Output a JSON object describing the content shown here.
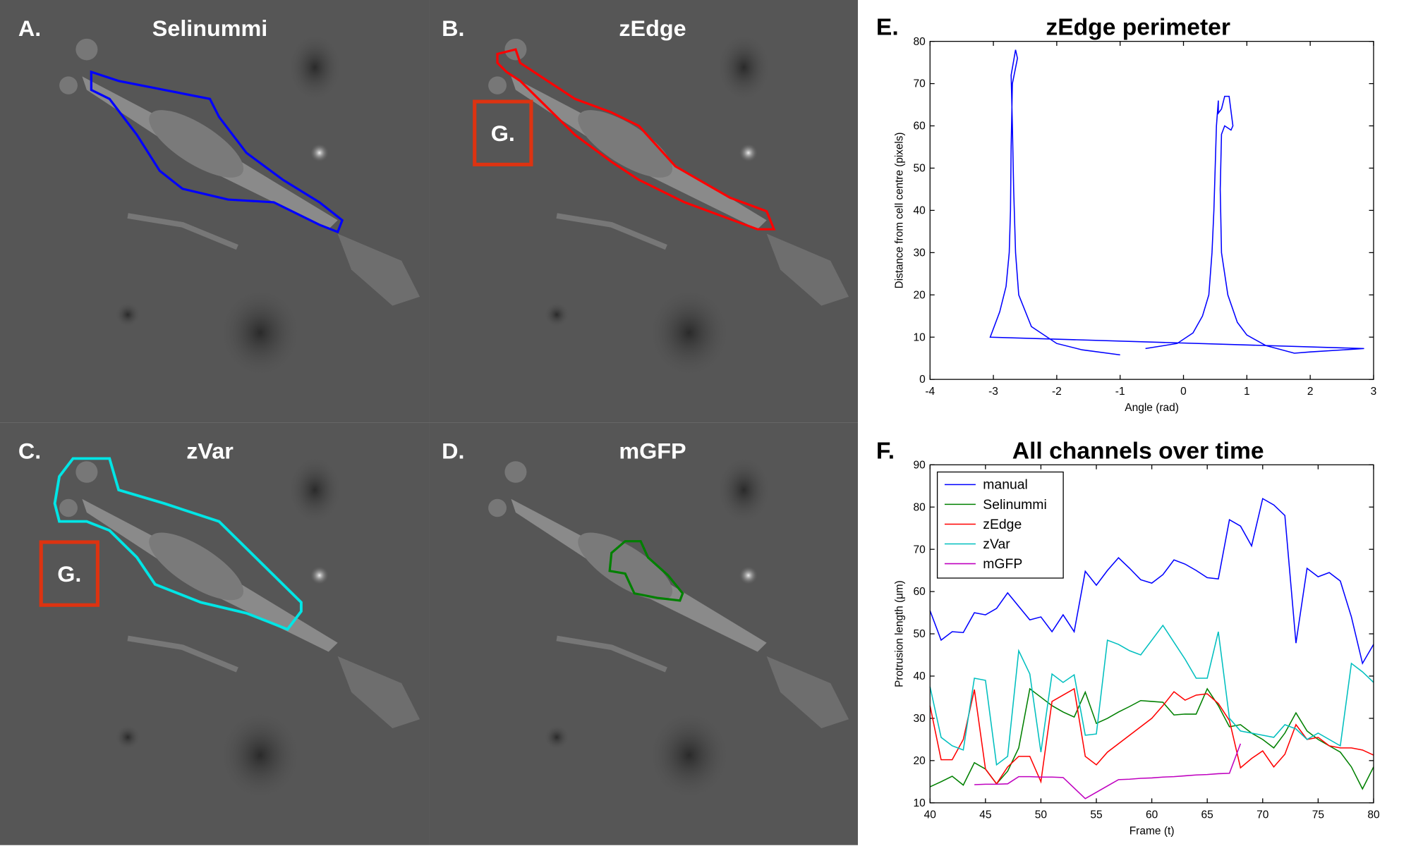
{
  "panels": [
    {
      "label": "A.",
      "title": "Selinummi"
    },
    {
      "label": "B.",
      "title": "zEdge",
      "inset_label": "G."
    },
    {
      "label": "C.",
      "title": "zVar",
      "inset_label": "G."
    },
    {
      "label": "D.",
      "title": "mGFP"
    }
  ],
  "chart_data": [
    {
      "type": "line",
      "label": "E.",
      "title": "zEdge perimeter",
      "x_label": "Angle (rad)",
      "y_label": "Distance from cell centre (pixels)",
      "x": [
        -1.0,
        -1.6,
        -2.0,
        -2.4,
        -2.6,
        -2.65,
        -2.68,
        -2.7,
        -2.72,
        -2.65,
        -2.62,
        -2.7,
        -2.72,
        -2.73,
        -2.75,
        -2.8,
        -2.9,
        -3.05,
        2.85,
        2.0,
        1.75,
        1.3,
        1.0,
        0.85,
        0.7,
        0.6,
        0.58,
        0.6,
        0.65,
        0.75,
        0.78,
        0.72,
        0.65,
        0.6,
        0.55,
        0.55,
        0.52,
        0.5,
        0.48,
        0.45,
        0.4,
        0.3,
        0.15,
        -0.1,
        -0.6
      ],
      "values": [
        5.8,
        7,
        8.5,
        12.5,
        20,
        30,
        45,
        60,
        72,
        78,
        76,
        70,
        55,
        40,
        30,
        22,
        16,
        10,
        7.3,
        6.5,
        6.2,
        8,
        10.5,
        13.5,
        20,
        30,
        45,
        58,
        60,
        59,
        60,
        67,
        67,
        64,
        63,
        66,
        60,
        50,
        40,
        30,
        20,
        15,
        11,
        8.5,
        7.3
      ],
      "color": "#0000ff",
      "xlim": [
        -4,
        3
      ],
      "xticks": [
        -4,
        -3,
        -2,
        -1,
        0,
        1,
        2,
        3
      ],
      "ylim": [
        0,
        80
      ],
      "yticks": [
        0,
        10,
        20,
        30,
        40,
        50,
        60,
        70,
        80
      ]
    },
    {
      "type": "line",
      "label": "F.",
      "title": "All channels over time",
      "x_label": "Frame (t)",
      "y_label": "Protrusion length (μm)",
      "x": [
        40,
        41,
        42,
        43,
        44,
        45,
        46,
        47,
        48,
        49,
        50,
        51,
        52,
        53,
        54,
        55,
        56,
        57,
        58,
        59,
        60,
        61,
        62,
        63,
        64,
        65,
        66,
        67,
        68,
        69,
        70,
        71,
        72,
        73,
        74,
        75,
        76,
        77,
        78,
        79,
        80
      ],
      "series": [
        {
          "name": "manual",
          "color": "#0000ff",
          "values": [
            55.5,
            48.5,
            50.5,
            50.3,
            55,
            54.5,
            56,
            59.7,
            56.5,
            53.3,
            54,
            50.5,
            54.5,
            50.5,
            64.8,
            61.5,
            65,
            68,
            65.5,
            62.8,
            62,
            64,
            67.5,
            66.5,
            65,
            63.3,
            63,
            77,
            75.5,
            70.8,
            82,
            80.5,
            78,
            47.8,
            65.5,
            63.5,
            64.5,
            62.5,
            54,
            43,
            47.5
          ]
        },
        {
          "name": "Selinummi",
          "color": "#008000",
          "values": [
            13.8,
            15,
            16.3,
            14.2,
            19.5,
            18,
            14.5,
            17.5,
            23,
            37,
            35,
            33,
            31.5,
            30.3,
            36.2,
            28.8,
            30,
            31.5,
            32.8,
            34.2,
            34,
            33.8,
            30.8,
            31,
            31,
            37,
            33,
            28,
            28.5,
            26.5,
            25,
            23,
            26.5,
            31.3,
            27,
            25,
            23.5,
            22,
            18.5,
            13.3,
            18.5
          ]
        },
        {
          "name": "zEdge",
          "color": "#ff0000",
          "values": [
            33,
            20.2,
            20.2,
            25,
            36.8,
            18,
            14.5,
            18.5,
            21,
            21,
            15,
            34,
            35.5,
            37,
            21,
            19,
            22,
            24,
            26,
            28,
            30,
            33,
            36.3,
            34.3,
            35.5,
            35.8,
            33.5,
            29.5,
            18.3,
            20.5,
            22.3,
            18.5,
            21.5,
            28.5,
            25,
            25.5,
            23.5,
            23,
            23,
            22.5,
            21.3
          ]
        },
        {
          "name": "zVar",
          "color": "#00bfbf",
          "values": [
            37.5,
            25.5,
            23.5,
            22.5,
            39.5,
            39,
            19,
            21,
            46,
            40.5,
            22,
            40.5,
            38.5,
            40.3,
            26,
            26.3,
            48.5,
            47.5,
            46,
            45,
            48.5,
            52,
            48,
            44,
            39.5,
            39.5,
            50.5,
            30,
            27,
            26.5,
            26,
            25.5,
            28.5,
            27.5,
            25,
            26.5,
            25,
            23.5,
            43,
            41,
            38.5
          ]
        },
        {
          "name": "mGFP",
          "color": "#bf00bf",
          "values": [
            null,
            null,
            null,
            null,
            14.3,
            14.4,
            14.4,
            14.5,
            16.2,
            16.2,
            16.1,
            16.1,
            16,
            13.5,
            11,
            12.5,
            14,
            15.5,
            15.6,
            15.8,
            15.9,
            16.1,
            16.2,
            16.4,
            16.6,
            16.7,
            16.9,
            17,
            24,
            null,
            null,
            null,
            null,
            null,
            null,
            null,
            null,
            null,
            null,
            null,
            null
          ]
        }
      ],
      "legend": "upper left",
      "xlim": [
        40,
        80
      ],
      "xticks": [
        40,
        45,
        50,
        55,
        60,
        65,
        70,
        75,
        80
      ],
      "ylim": [
        10,
        90
      ],
      "yticks": [
        10,
        20,
        30,
        40,
        50,
        60,
        70,
        80,
        90
      ]
    }
  ]
}
